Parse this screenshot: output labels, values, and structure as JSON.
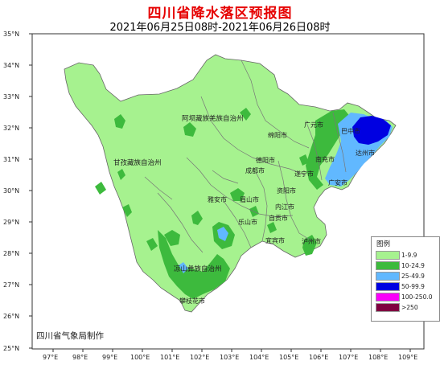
{
  "header": {
    "title": "四川省降水落区预报图",
    "subtitle": "2021年06月25日08时-2021年06月26日08时"
  },
  "axes": {
    "lat_labels": [
      "35°N",
      "34°N",
      "33°N",
      "32°N",
      "31°N",
      "30°N",
      "29°N",
      "28°N",
      "27°N",
      "26°N",
      "25°N"
    ],
    "lon_labels": [
      "97°E",
      "98°E",
      "99°E",
      "100°E",
      "101°E",
      "102°E",
      "103°E",
      "104°E",
      "105°E",
      "106°E",
      "107°E",
      "108°E",
      "109°E"
    ]
  },
  "cities": {
    "guangyuan": "广元市",
    "bazhong": "巴中市",
    "dazhou": "达州市",
    "mianyang": "绵阳市",
    "nanchong": "南充市",
    "deyang": "德阳市",
    "chengdu": "成都市",
    "suining": "遂宁市",
    "guangan": "广安市",
    "yaan": "雅安市",
    "meishan": "眉山市",
    "ziyang": "资阳市",
    "neijiang": "内江市",
    "leshan": "乐山市",
    "zigong": "自贡市",
    "yibin": "宜宾市",
    "luzhou": "泸州市",
    "panzhihua": "攀枝花市"
  },
  "prefectures": {
    "aba": "阿坝藏族羌族自治州",
    "ganzi": "甘孜藏族自治州",
    "liangshan": "凉山彝族自治州"
  },
  "legend": {
    "title": "图例",
    "items": [
      {
        "label": "1-9.9",
        "color": "#a6f28f"
      },
      {
        "label": "10-24.9",
        "color": "#3dba3d"
      },
      {
        "label": "25-49.9",
        "color": "#61b8ff"
      },
      {
        "label": "50-99.9",
        "color": "#0000e1"
      },
      {
        "label": "100-250.0",
        "color": "#fa00fa"
      },
      {
        "label": ">250",
        "color": "#800040"
      }
    ]
  },
  "credit": "四川省气象局制作"
}
